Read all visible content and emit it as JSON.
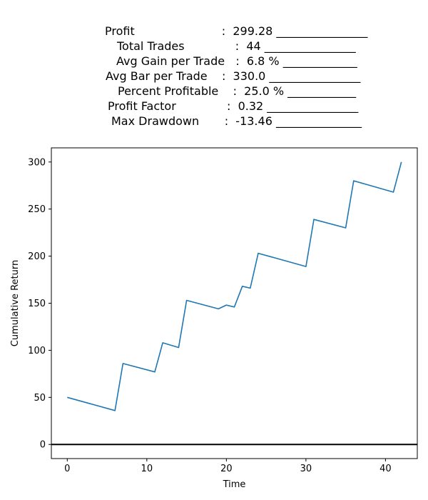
{
  "stats": [
    {
      "text": "Profit                        :  299.28 ________________"
    },
    {
      "text": "Total Trades              :  44 ________________"
    },
    {
      "text": "Avg Gain per Trade   :  6.8 % _____________"
    },
    {
      "text": "Avg Bar per Trade    :  330.0 ________________"
    },
    {
      "text": "Percent Profitable    :  25.0 % ____________"
    },
    {
      "text": "Profit Factor              :  0.32 ________________"
    },
    {
      "text": "Max Drawdown       :  -13.46 _______________"
    }
  ],
  "chart_data": {
    "type": "line",
    "title": "",
    "xlabel": "Time",
    "ylabel": "Cumulative Return",
    "xlim": [
      -2,
      44
    ],
    "ylim": [
      -15,
      315
    ],
    "xticks": [
      0,
      10,
      20,
      30,
      40
    ],
    "yticks": [
      0,
      50,
      100,
      150,
      200,
      250,
      300
    ],
    "hline": 0,
    "line_color": "#1f77b4",
    "series": [
      {
        "x": [
          0,
          6,
          7,
          11,
          12,
          14,
          15,
          19,
          20,
          21,
          22,
          23,
          24,
          30,
          31,
          35,
          36,
          41,
          42
        ],
        "values": [
          50,
          36,
          86,
          77,
          108,
          103,
          153,
          144,
          148,
          146,
          168,
          166,
          203,
          189,
          239,
          230,
          280,
          268,
          300
        ]
      }
    ]
  }
}
